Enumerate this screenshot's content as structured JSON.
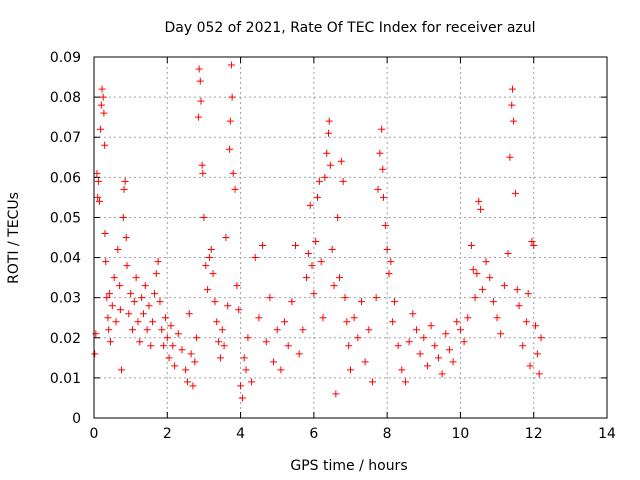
{
  "chart_data": {
    "type": "scatter",
    "title": "Day 052 of 2021, Rate Of TEC Index for receiver azul",
    "xlabel": "GPS time / hours",
    "ylabel": "ROTI / TECUs",
    "xlim": [
      0,
      14
    ],
    "ylim": [
      0,
      0.09
    ],
    "x_ticks": [
      "0",
      "2",
      "4",
      "6",
      "8",
      "10",
      "12",
      "14"
    ],
    "y_ticks": [
      "0",
      "0.01",
      "0.02",
      "0.03",
      "0.04",
      "0.05",
      "0.06",
      "0.07",
      "0.08",
      "0.09"
    ],
    "grid": true,
    "marker": "+",
    "colors": {
      "points": "#ff0000",
      "grid": "#a0a0a0",
      "frame": "#000000"
    },
    "series": [
      {
        "points": [
          [
            0.02,
            0.016
          ],
          [
            0.05,
            0.021
          ],
          [
            0.08,
            0.061
          ],
          [
            0.1,
            0.055
          ],
          [
            0.12,
            0.059
          ],
          [
            0.15,
            0.054
          ],
          [
            0.18,
            0.072
          ],
          [
            0.2,
            0.078
          ],
          [
            0.22,
            0.082
          ],
          [
            0.25,
            0.08
          ],
          [
            0.27,
            0.076
          ],
          [
            0.29,
            0.068
          ],
          [
            0.3,
            0.046
          ],
          [
            0.32,
            0.039
          ],
          [
            0.35,
            0.03
          ],
          [
            0.38,
            0.025
          ],
          [
            0.4,
            0.022
          ],
          [
            0.42,
            0.031
          ],
          [
            0.45,
            0.019
          ],
          [
            0.5,
            0.028
          ],
          [
            0.55,
            0.035
          ],
          [
            0.6,
            0.024
          ],
          [
            0.65,
            0.042
          ],
          [
            0.7,
            0.033
          ],
          [
            0.72,
            0.027
          ],
          [
            0.75,
            0.012
          ],
          [
            0.8,
            0.05
          ],
          [
            0.82,
            0.057
          ],
          [
            0.85,
            0.059
          ],
          [
            0.88,
            0.045
          ],
          [
            0.9,
            0.038
          ],
          [
            0.95,
            0.026
          ],
          [
            1.0,
            0.031
          ],
          [
            1.05,
            0.022
          ],
          [
            1.1,
            0.029
          ],
          [
            1.15,
            0.035
          ],
          [
            1.2,
            0.024
          ],
          [
            1.25,
            0.019
          ],
          [
            1.3,
            0.03
          ],
          [
            1.35,
            0.026
          ],
          [
            1.4,
            0.033
          ],
          [
            1.45,
            0.022
          ],
          [
            1.5,
            0.028
          ],
          [
            1.55,
            0.018
          ],
          [
            1.6,
            0.024
          ],
          [
            1.65,
            0.031
          ],
          [
            1.7,
            0.036
          ],
          [
            1.75,
            0.039
          ],
          [
            1.8,
            0.029
          ],
          [
            1.85,
            0.022
          ],
          [
            1.9,
            0.018
          ],
          [
            1.95,
            0.025
          ],
          [
            2.0,
            0.02
          ],
          [
            2.05,
            0.015
          ],
          [
            2.1,
            0.023
          ],
          [
            2.15,
            0.018
          ],
          [
            2.2,
            0.013
          ],
          [
            2.3,
            0.021
          ],
          [
            2.4,
            0.017
          ],
          [
            2.5,
            0.012
          ],
          [
            2.55,
            0.009
          ],
          [
            2.6,
            0.026
          ],
          [
            2.65,
            0.016
          ],
          [
            2.7,
            0.008
          ],
          [
            2.75,
            0.014
          ],
          [
            2.8,
            0.02
          ],
          [
            2.85,
            0.075
          ],
          [
            2.87,
            0.087
          ],
          [
            2.9,
            0.084
          ],
          [
            2.92,
            0.079
          ],
          [
            2.95,
            0.063
          ],
          [
            2.97,
            0.061
          ],
          [
            3.0,
            0.05
          ],
          [
            3.05,
            0.038
          ],
          [
            3.1,
            0.032
          ],
          [
            3.15,
            0.04
          ],
          [
            3.2,
            0.042
          ],
          [
            3.25,
            0.036
          ],
          [
            3.3,
            0.029
          ],
          [
            3.35,
            0.024
          ],
          [
            3.4,
            0.019
          ],
          [
            3.45,
            0.015
          ],
          [
            3.5,
            0.022
          ],
          [
            3.55,
            0.018
          ],
          [
            3.6,
            0.045
          ],
          [
            3.65,
            0.028
          ],
          [
            3.7,
            0.067
          ],
          [
            3.72,
            0.074
          ],
          [
            3.75,
            0.088
          ],
          [
            3.77,
            0.08
          ],
          [
            3.8,
            0.061
          ],
          [
            3.85,
            0.057
          ],
          [
            3.9,
            0.033
          ],
          [
            3.95,
            0.027
          ],
          [
            4.0,
            0.008
          ],
          [
            4.05,
            0.005
          ],
          [
            4.1,
            0.015
          ],
          [
            4.15,
            0.012
          ],
          [
            4.2,
            0.02
          ],
          [
            4.3,
            0.009
          ],
          [
            4.4,
            0.04
          ],
          [
            4.5,
            0.025
          ],
          [
            4.6,
            0.043
          ],
          [
            4.7,
            0.019
          ],
          [
            4.8,
            0.03
          ],
          [
            4.9,
            0.014
          ],
          [
            5.0,
            0.022
          ],
          [
            5.1,
            0.012
          ],
          [
            5.2,
            0.024
          ],
          [
            5.3,
            0.018
          ],
          [
            5.4,
            0.029
          ],
          [
            5.5,
            0.043
          ],
          [
            5.6,
            0.016
          ],
          [
            5.7,
            0.022
          ],
          [
            5.8,
            0.035
          ],
          [
            5.85,
            0.041
          ],
          [
            5.9,
            0.053
          ],
          [
            5.95,
            0.038
          ],
          [
            6.0,
            0.031
          ],
          [
            6.05,
            0.044
          ],
          [
            6.1,
            0.055
          ],
          [
            6.15,
            0.059
          ],
          [
            6.2,
            0.039
          ],
          [
            6.25,
            0.025
          ],
          [
            6.3,
            0.06
          ],
          [
            6.35,
            0.066
          ],
          [
            6.4,
            0.071
          ],
          [
            6.42,
            0.074
          ],
          [
            6.45,
            0.063
          ],
          [
            6.5,
            0.042
          ],
          [
            6.55,
            0.033
          ],
          [
            6.6,
            0.006
          ],
          [
            6.65,
            0.05
          ],
          [
            6.7,
            0.035
          ],
          [
            6.75,
            0.064
          ],
          [
            6.8,
            0.059
          ],
          [
            6.85,
            0.03
          ],
          [
            6.9,
            0.024
          ],
          [
            6.95,
            0.018
          ],
          [
            7.0,
            0.012
          ],
          [
            7.1,
            0.025
          ],
          [
            7.2,
            0.02
          ],
          [
            7.3,
            0.029
          ],
          [
            7.4,
            0.014
          ],
          [
            7.5,
            0.022
          ],
          [
            7.6,
            0.009
          ],
          [
            7.7,
            0.03
          ],
          [
            7.75,
            0.057
          ],
          [
            7.8,
            0.066
          ],
          [
            7.85,
            0.072
          ],
          [
            7.88,
            0.062
          ],
          [
            7.9,
            0.055
          ],
          [
            7.95,
            0.048
          ],
          [
            8.0,
            0.042
          ],
          [
            8.05,
            0.036
          ],
          [
            8.1,
            0.039
          ],
          [
            8.15,
            0.024
          ],
          [
            8.2,
            0.029
          ],
          [
            8.3,
            0.018
          ],
          [
            8.4,
            0.012
          ],
          [
            8.5,
            0.009
          ],
          [
            8.6,
            0.019
          ],
          [
            8.7,
            0.026
          ],
          [
            8.8,
            0.022
          ],
          [
            8.9,
            0.016
          ],
          [
            9.0,
            0.02
          ],
          [
            9.1,
            0.013
          ],
          [
            9.2,
            0.023
          ],
          [
            9.3,
            0.018
          ],
          [
            9.4,
            0.015
          ],
          [
            9.5,
            0.011
          ],
          [
            9.6,
            0.021
          ],
          [
            9.7,
            0.017
          ],
          [
            9.8,
            0.014
          ],
          [
            9.9,
            0.024
          ],
          [
            10.0,
            0.022
          ],
          [
            10.1,
            0.019
          ],
          [
            10.2,
            0.025
          ],
          [
            10.3,
            0.043
          ],
          [
            10.35,
            0.037
          ],
          [
            10.4,
            0.03
          ],
          [
            10.45,
            0.036
          ],
          [
            10.5,
            0.054
          ],
          [
            10.55,
            0.052
          ],
          [
            10.6,
            0.032
          ],
          [
            10.7,
            0.039
          ],
          [
            10.8,
            0.035
          ],
          [
            10.9,
            0.029
          ],
          [
            11.0,
            0.025
          ],
          [
            11.1,
            0.021
          ],
          [
            11.2,
            0.033
          ],
          [
            11.3,
            0.041
          ],
          [
            11.35,
            0.065
          ],
          [
            11.4,
            0.078
          ],
          [
            11.42,
            0.082
          ],
          [
            11.45,
            0.074
          ],
          [
            11.5,
            0.056
          ],
          [
            11.55,
            0.032
          ],
          [
            11.6,
            0.028
          ],
          [
            11.7,
            0.018
          ],
          [
            11.8,
            0.024
          ],
          [
            11.85,
            0.031
          ],
          [
            11.9,
            0.013
          ],
          [
            11.95,
            0.044
          ],
          [
            12.0,
            0.043
          ],
          [
            12.05,
            0.023
          ],
          [
            12.1,
            0.016
          ],
          [
            12.15,
            0.011
          ],
          [
            12.2,
            0.02
          ]
        ]
      }
    ]
  }
}
